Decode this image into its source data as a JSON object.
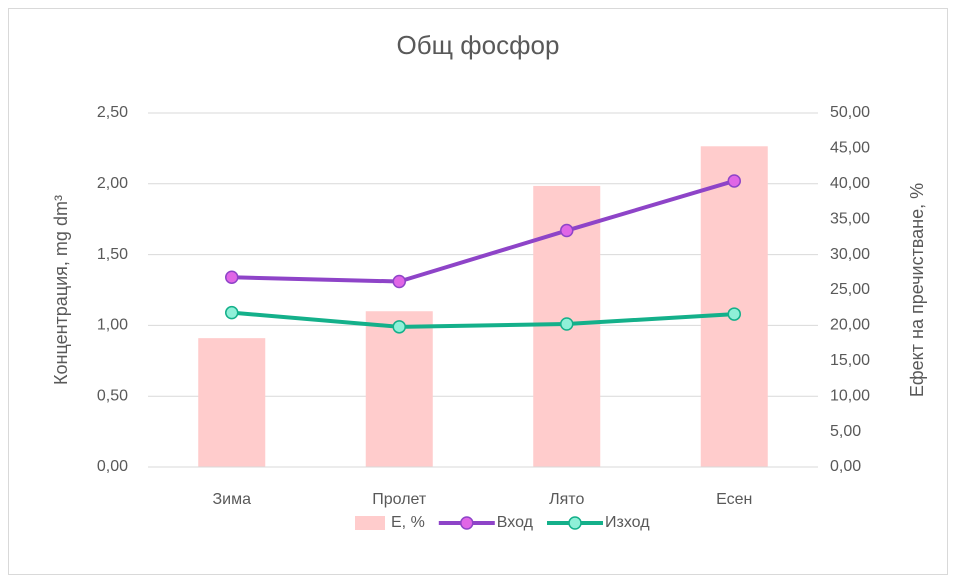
{
  "chart_data": {
    "type": "combo",
    "title": "Общ фосфор",
    "y_label": "Концентрация, mg dm³",
    "y2_label": "Ефект на пречистване, %",
    "categories": [
      "Зима",
      "Пролет",
      "Лято",
      "Есен"
    ],
    "series": [
      {
        "name": "Е, %",
        "type": "bar",
        "axis": "y2",
        "color": "#ffcccc",
        "values": [
          18.2,
          22.0,
          39.7,
          45.3
        ]
      },
      {
        "name": "Вход",
        "type": "line",
        "color": "#8e44c8",
        "marker_color": "#e066e6",
        "values": [
          1.34,
          1.31,
          1.67,
          2.02
        ]
      },
      {
        "name": "Изход",
        "type": "line",
        "color": "#14b08a",
        "marker_color": "#8ff0d8",
        "values": [
          1.09,
          0.99,
          1.01,
          1.08
        ]
      }
    ],
    "ylim": [
      0,
      2.5
    ],
    "yticks": [
      {
        "value": 0,
        "label": "0,00"
      },
      {
        "value": 0.5,
        "label": "0,50"
      },
      {
        "value": 1,
        "label": "1,00"
      },
      {
        "value": 1.5,
        "label": "1,50"
      },
      {
        "value": 2,
        "label": "2,00"
      },
      {
        "value": 2.5,
        "label": "2,50"
      }
    ],
    "y2lim": [
      0,
      50
    ],
    "y2ticks": [
      {
        "value": 0,
        "label": "0,00"
      },
      {
        "value": 5,
        "label": "5,00"
      },
      {
        "value": 10,
        "label": "10,00"
      },
      {
        "value": 15,
        "label": "15,00"
      },
      {
        "value": 20,
        "label": "20,00"
      },
      {
        "value": 25,
        "label": "25,00"
      },
      {
        "value": 30,
        "label": "30,00"
      },
      {
        "value": 35,
        "label": "35,00"
      },
      {
        "value": 40,
        "label": "40,00"
      },
      {
        "value": 45,
        "label": "45,00"
      },
      {
        "value": 50,
        "label": "50,00"
      }
    ],
    "grid": true,
    "legend": "bottom"
  }
}
